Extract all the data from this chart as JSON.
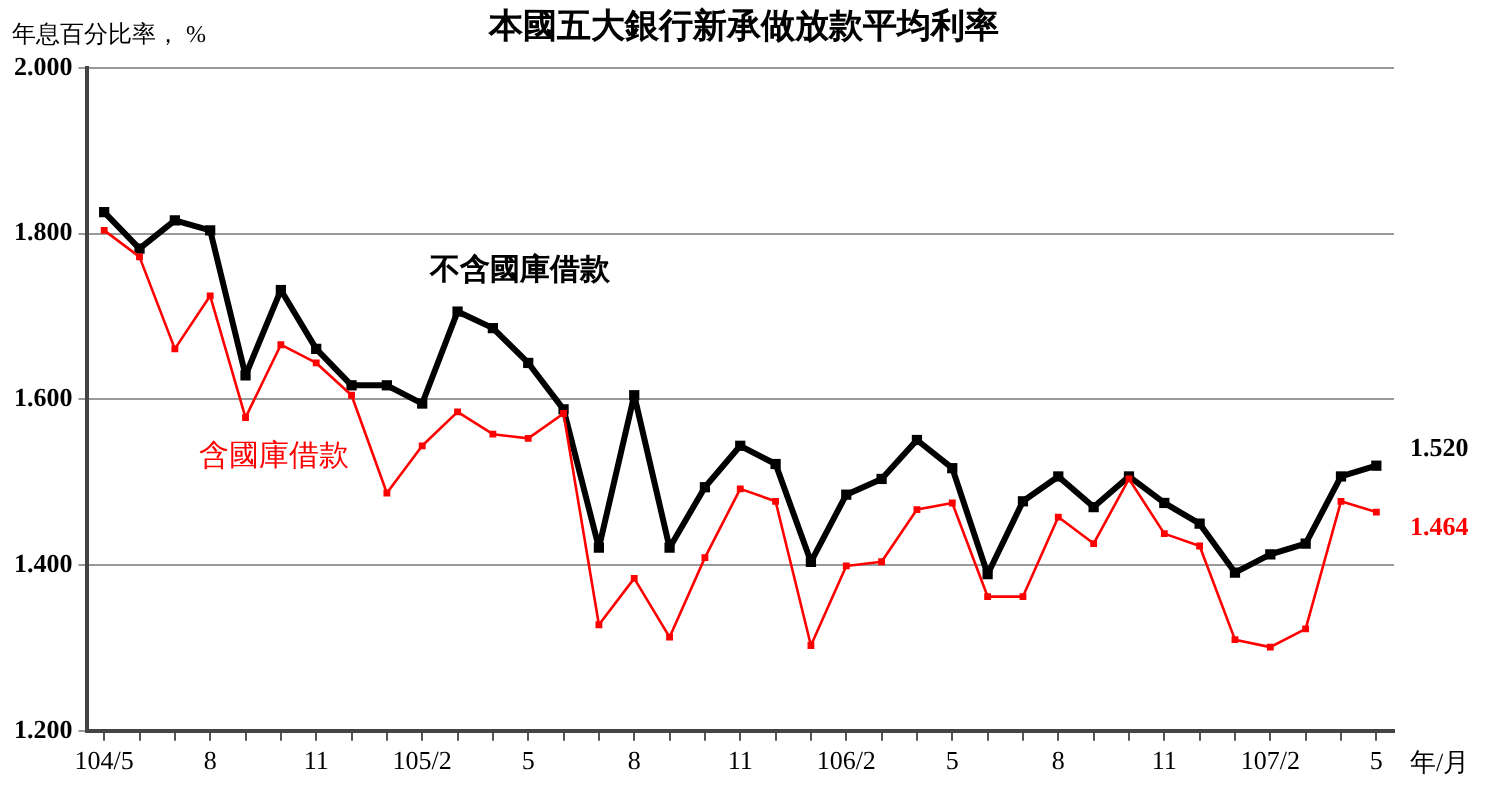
{
  "chart_data": {
    "type": "line",
    "title": "本國五大銀行新承做放款平均利率",
    "ylabel": "年息百分比率， %",
    "xlabel": "年/月",
    "categories": [
      "104/5",
      null,
      null,
      "8",
      null,
      null,
      "11",
      null,
      null,
      "105/2",
      null,
      null,
      "5",
      null,
      null,
      "8",
      null,
      null,
      "11",
      null,
      null,
      "106/2",
      null,
      null,
      "5",
      null,
      null,
      "8",
      null,
      null,
      "11",
      null,
      null,
      "107/2",
      null,
      null,
      "5"
    ],
    "series": [
      {
        "name": "不含國庫借款",
        "color": "#000000",
        "values": [
          1.826,
          1.782,
          1.816,
          1.804,
          1.629,
          1.732,
          1.661,
          1.617,
          1.617,
          1.595,
          1.706,
          1.686,
          1.644,
          1.588,
          1.421,
          1.605,
          1.421,
          1.494,
          1.544,
          1.522,
          1.404,
          1.485,
          1.504,
          1.551,
          1.517,
          1.389,
          1.477,
          1.507,
          1.47,
          1.507,
          1.475,
          1.45,
          1.391,
          1.413,
          1.426,
          1.507,
          1.52
        ],
        "value_labels": [
          null,
          null,
          null,
          null,
          null,
          null,
          null,
          null,
          null,
          null,
          null,
          null,
          null,
          null,
          null,
          null,
          null,
          null,
          null,
          null,
          null,
          null,
          null,
          null,
          null,
          null,
          null,
          null,
          null,
          null,
          null,
          null,
          null,
          null,
          null,
          null,
          "1.520"
        ]
      },
      {
        "name": "含國庫借款",
        "color": "#ff0000",
        "values": [
          1.804,
          1.772,
          1.661,
          1.725,
          1.578,
          1.666,
          1.644,
          1.605,
          1.487,
          1.544,
          1.585,
          1.558,
          1.553,
          1.583,
          1.328,
          1.384,
          1.313,
          1.409,
          1.492,
          1.477,
          1.303,
          1.399,
          1.404,
          1.467,
          1.475,
          1.362,
          1.362,
          1.458,
          1.426,
          1.504,
          1.438,
          1.423,
          1.31,
          1.301,
          1.323,
          1.477,
          1.464
        ],
        "value_labels": [
          null,
          null,
          null,
          null,
          null,
          null,
          null,
          null,
          null,
          null,
          null,
          null,
          null,
          null,
          null,
          null,
          null,
          null,
          null,
          null,
          null,
          null,
          null,
          null,
          null,
          null,
          null,
          null,
          null,
          null,
          null,
          null,
          null,
          null,
          null,
          null,
          "1.464"
        ]
      }
    ],
    "ylim": [
      1.2,
      2.0
    ],
    "yticks": [
      {
        "value": 1.2,
        "label": "1.200"
      },
      {
        "value": 1.4,
        "label": "1.400"
      },
      {
        "value": 1.6,
        "label": "1.600"
      },
      {
        "value": 1.8,
        "label": "1.800"
      },
      {
        "value": 2.0,
        "label": "2.000"
      }
    ],
    "grid": "y",
    "legend": false,
    "marker": "square",
    "line_style": "solid"
  }
}
